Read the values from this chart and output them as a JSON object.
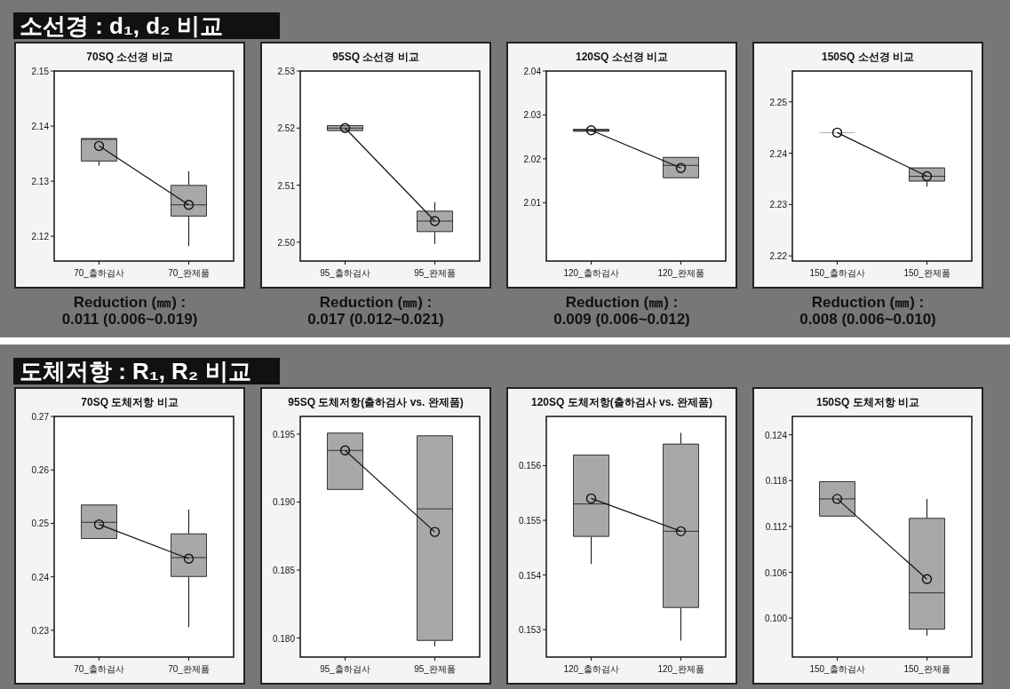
{
  "chart_data": [
    {
      "type": "box",
      "subtitle": "소선경 : d₁, d₂ 비교",
      "title": "70SQ 소선경 비교",
      "categories": [
        "70_출하검사",
        "70_완제품"
      ],
      "ylim": [
        2.1155,
        2.15
      ],
      "yticks": [
        2.12,
        2.13,
        2.14,
        2.15
      ],
      "color": "#a8a8a8",
      "marker": "circle",
      "boxes": [
        {
          "low": 2.1328,
          "q1": 2.1336,
          "median": 2.1376,
          "q3": 2.1378,
          "high": 2.1378
        },
        {
          "low": 2.1182,
          "q1": 2.1236,
          "median": 2.1257,
          "q3": 2.1293,
          "high": 2.1318
        }
      ],
      "series": [
        {
          "type": "line",
          "color": "#111111",
          "values": [
            2.1364,
            2.1257
          ]
        }
      ],
      "annotations": [
        "Reduction (㎜) :\n0.011 (0.006~0.019)"
      ]
    },
    {
      "type": "box",
      "title": "95SQ 소선경 비교",
      "categories": [
        "95_출하검사",
        "95_완제품"
      ],
      "ylim": [
        2.4967,
        2.53
      ],
      "yticks": [
        {
          "value": 2.5,
          "label": "2.50"
        },
        2.51,
        2.52,
        2.53
      ],
      "color": "#a8a8a8",
      "marker": "circle",
      "boxes": [
        {
          "low": 2.5195,
          "q1": 2.5195,
          "median": 2.52,
          "q3": 2.5205,
          "high": 2.5205
        },
        {
          "low": 2.4997,
          "q1": 2.5018,
          "median": 2.5037,
          "q3": 2.5055,
          "high": 2.507
        }
      ],
      "series": [
        {
          "type": "line",
          "color": "#111111",
          "values": [
            2.52,
            2.5037
          ]
        }
      ],
      "annotations": [
        "Reduction (㎜) :\n0.017 (0.012~0.021)"
      ]
    },
    {
      "type": "box",
      "title": "120SQ 소선경 비교",
      "categories": [
        "120_출하검사",
        "120_완제품"
      ],
      "ylim": [
        1.9967,
        2.04
      ],
      "yticks": [
        2.01,
        2.02,
        2.03,
        2.04
      ],
      "color": "#a8a8a8",
      "marker": "circle",
      "boxes": [
        {
          "low": 2.0262,
          "q1": 2.0262,
          "median": 2.0265,
          "q3": 2.0268,
          "high": 2.0268
        },
        {
          "low": 2.0156,
          "q1": 2.0156,
          "median": 2.0185,
          "q3": 2.0204,
          "high": 2.0204
        }
      ],
      "series": [
        {
          "type": "line",
          "color": "#111111",
          "values": [
            2.0265,
            2.0179
          ]
        }
      ],
      "annotations": [
        "Reduction (㎜) :\n0.009 (0.006~0.012)"
      ]
    },
    {
      "type": "box",
      "title": "150SQ 소선경 비교",
      "categories": [
        "150_출하검사",
        "150_완제품"
      ],
      "ylim": [
        2.219,
        2.256
      ],
      "yticks": [
        2.22,
        2.23,
        2.24,
        2.25
      ],
      "color": "#a8a8a8",
      "marker": "circle",
      "boxes": [
        {
          "low": 2.244,
          "q1": 2.244,
          "median": 2.244,
          "q3": 2.244,
          "high": 2.244
        },
        {
          "low": 2.2335,
          "q1": 2.2345,
          "median": 2.2355,
          "q3": 2.2372,
          "high": 2.2372
        }
      ],
      "series": [
        {
          "type": "line",
          "color": "#111111",
          "values": [
            2.244,
            2.2355
          ]
        }
      ],
      "annotations": [
        "Reduction (㎜) :\n0.008 (0.006~0.010)"
      ]
    },
    {
      "type": "box",
      "subtitle": "도체저항 : R₁, R₂ 비교",
      "title": "70SQ 도체저항 비교",
      "categories": [
        "70_출하검사",
        "70_완제품"
      ],
      "ylim": [
        0.225,
        0.27
      ],
      "yticks": [
        0.23,
        0.24,
        0.25,
        0.26,
        0.27
      ],
      "color": "#a8a8a8",
      "marker": "circle",
      "boxes": [
        {
          "low": 0.2471,
          "q1": 0.2471,
          "median": 0.2502,
          "q3": 0.2535,
          "high": 0.2535
        },
        {
          "low": 0.2306,
          "q1": 0.24,
          "median": 0.2436,
          "q3": 0.2481,
          "high": 0.2526
        }
      ],
      "series": [
        {
          "type": "line",
          "color": "#111111",
          "values": [
            0.2498,
            0.2434
          ]
        }
      ]
    },
    {
      "type": "box",
      "title": "95SQ 도체저항(출하검사 vs. 완제품)",
      "categories": [
        "95_출하검사",
        "95_완제품"
      ],
      "ylim": [
        0.1786,
        0.1963
      ],
      "yticks": [
        {
          "value": 0.18,
          "label": "0.180"
        },
        0.185,
        {
          "value": 0.19,
          "label": "0.190"
        },
        0.195
      ],
      "color": "#a8a8a8",
      "marker": "circle",
      "boxes": [
        {
          "low": 0.1909,
          "q1": 0.1909,
          "median": 0.1938,
          "q3": 0.1951,
          "high": 0.1951
        },
        {
          "low": 0.1794,
          "q1": 0.1798,
          "median": 0.1895,
          "q3": 0.1949,
          "high": 0.1949
        }
      ],
      "series": [
        {
          "type": "line",
          "color": "#111111",
          "values": [
            0.1938,
            0.1878
          ]
        }
      ]
    },
    {
      "type": "box",
      "title": "120SQ 도체저항(출하검사 vs. 완제품)",
      "categories": [
        "120_출하검사",
        "120_완제품"
      ],
      "ylim": [
        0.1525,
        0.1569
      ],
      "yticks": [
        0.153,
        0.154,
        0.155,
        0.156
      ],
      "color": "#a8a8a8",
      "marker": "circle",
      "boxes": [
        {
          "low": 0.1542,
          "q1": 0.1547,
          "median": 0.1553,
          "q3": 0.1562,
          "high": 0.1562
        },
        {
          "low": 0.1528,
          "q1": 0.1534,
          "median": 0.1548,
          "q3": 0.1564,
          "high": 0.1566
        }
      ],
      "series": [
        {
          "type": "line",
          "color": "#111111",
          "values": [
            0.1554,
            0.1548
          ]
        }
      ]
    },
    {
      "type": "box",
      "title": "150SQ 도체저항 비교",
      "categories": [
        "150_출하검사",
        "150_완제품"
      ],
      "ylim": [
        0.0949,
        0.1264
      ],
      "yticks": [
        {
          "value": 0.1,
          "label": "0.100"
        },
        0.106,
        0.112,
        0.118,
        0.124
      ],
      "color": "#a8a8a8",
      "marker": "circle",
      "boxes": [
        {
          "low": 0.1133,
          "q1": 0.1133,
          "median": 0.1156,
          "q3": 0.1179,
          "high": 0.1179
        },
        {
          "low": 0.0977,
          "q1": 0.0985,
          "median": 0.1033,
          "q3": 0.1131,
          "high": 0.1156
        }
      ],
      "series": [
        {
          "type": "line",
          "color": "#111111",
          "values": [
            0.1156,
            0.1051
          ]
        }
      ]
    }
  ]
}
